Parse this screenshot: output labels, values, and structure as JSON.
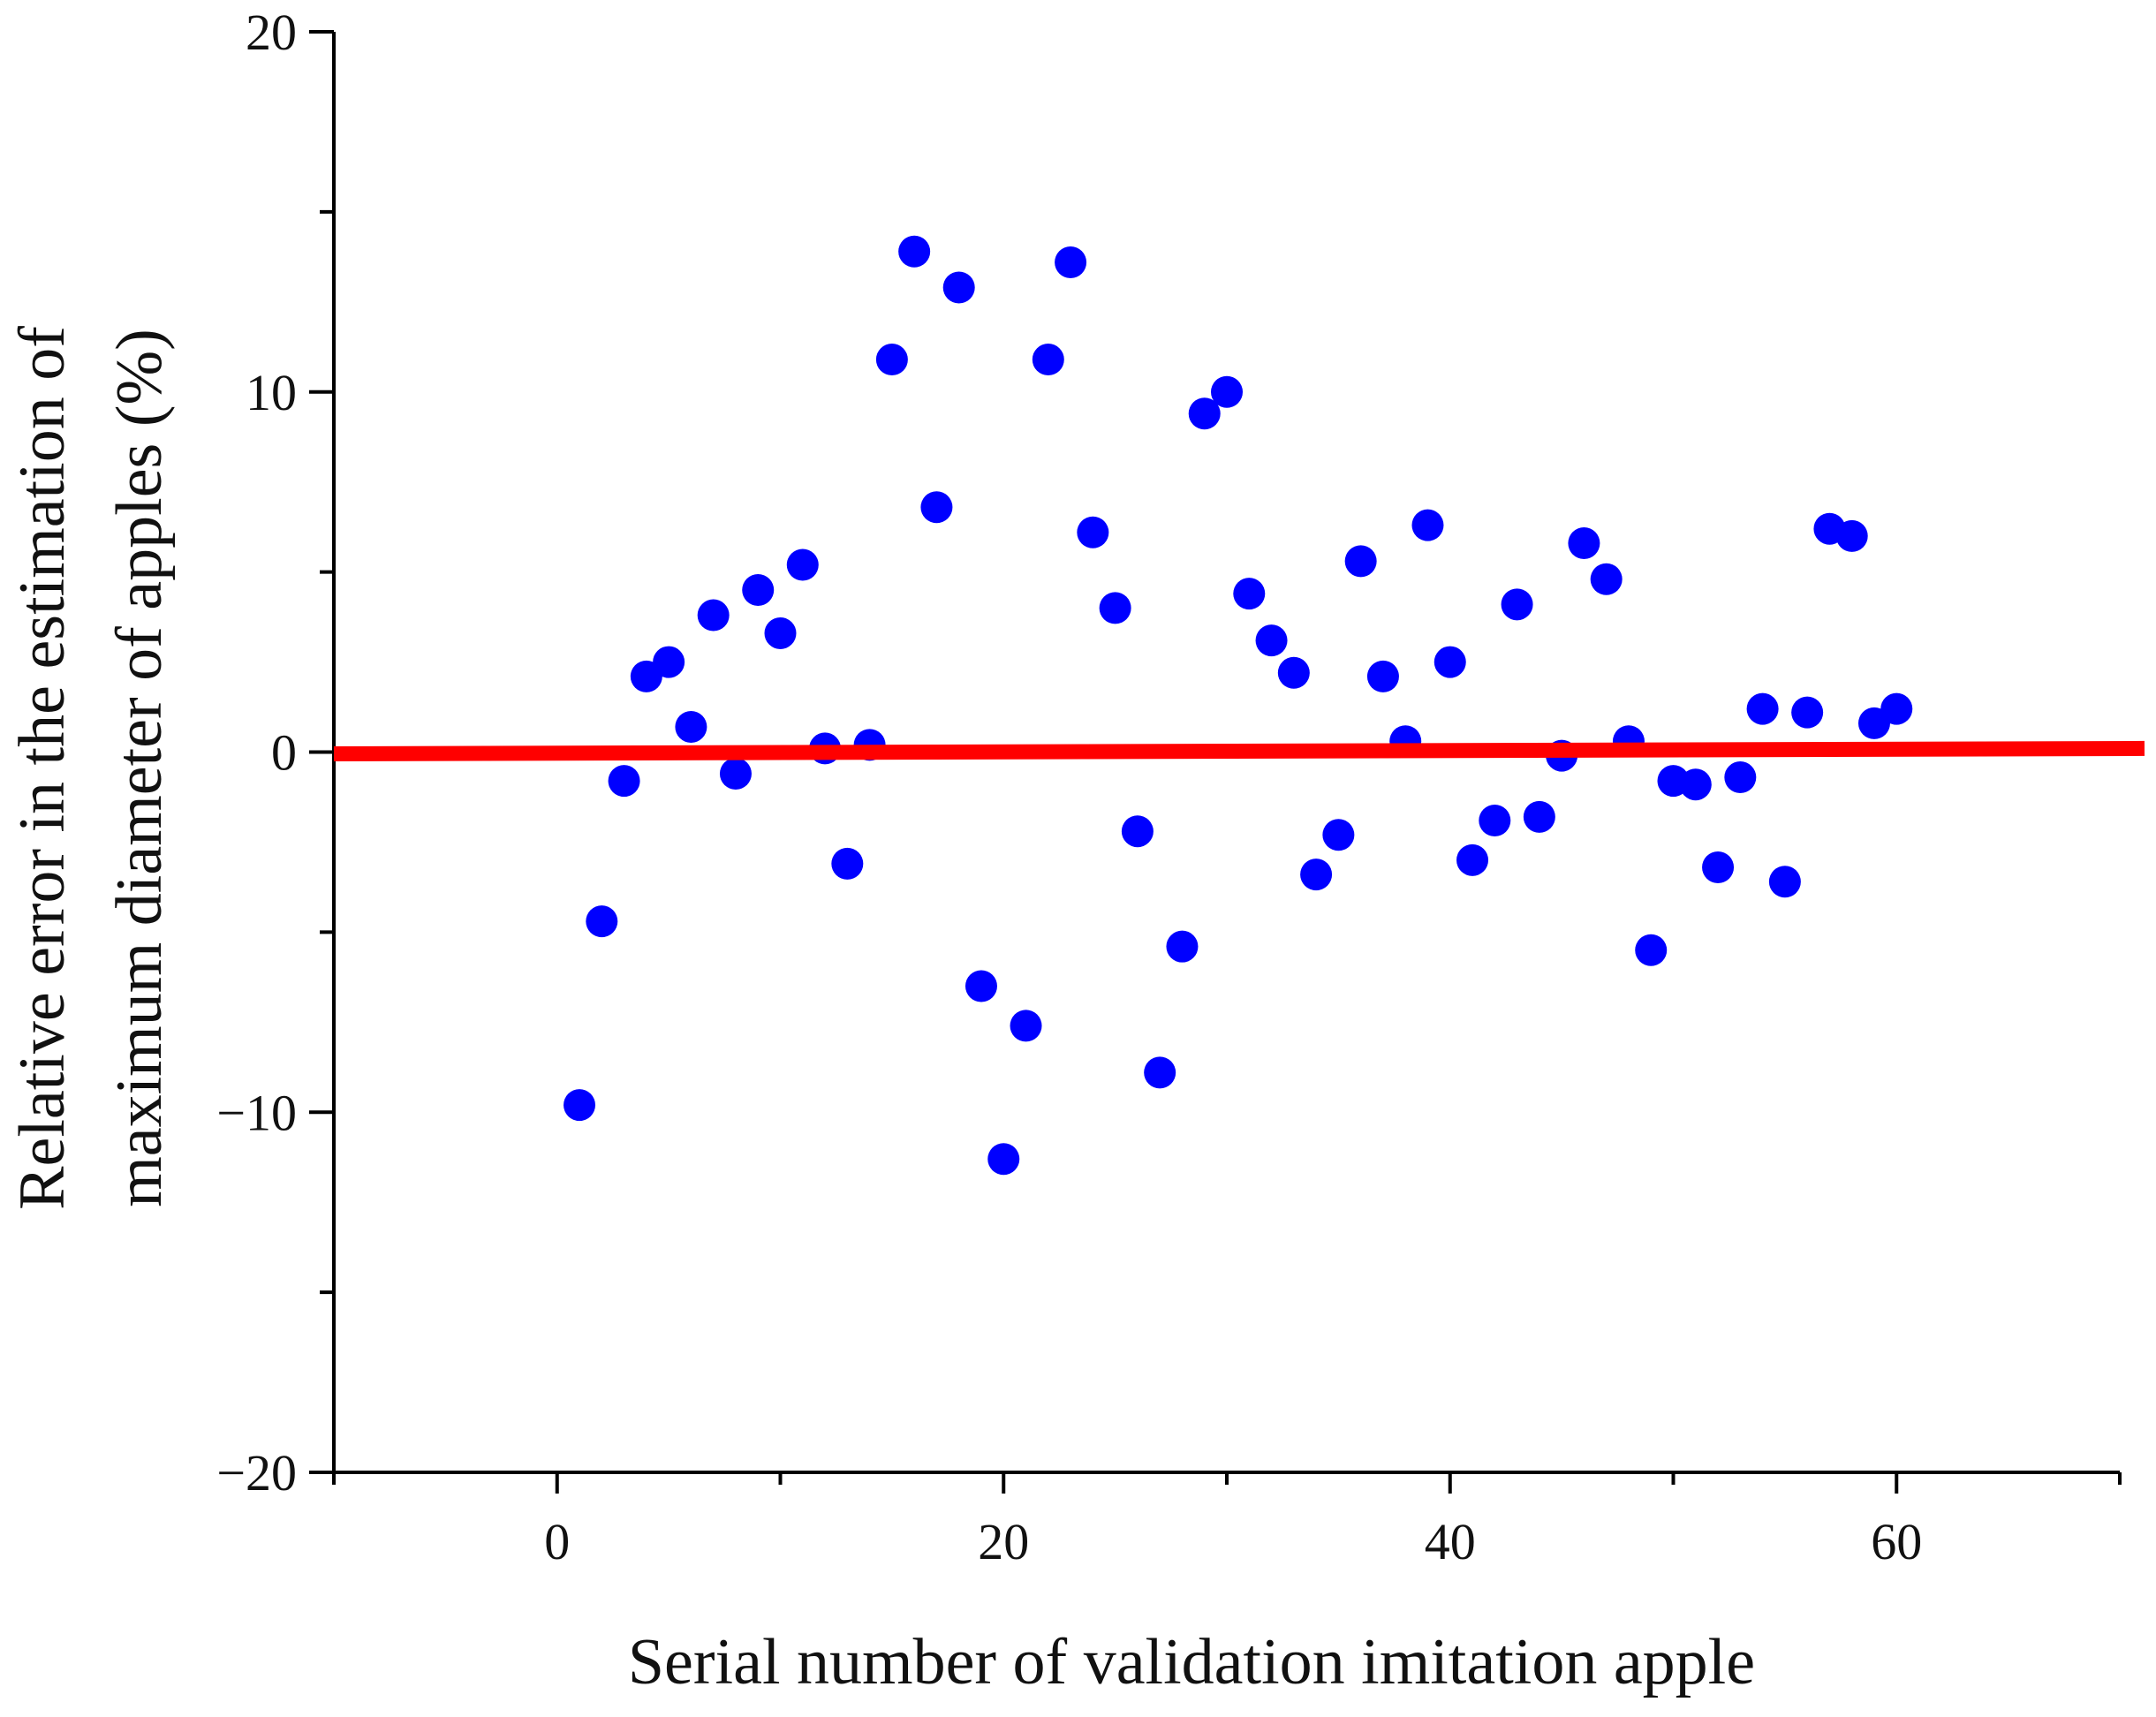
{
  "chart_data": {
    "type": "scatter",
    "title": "",
    "xlabel": "Serial number of validation imitation apple",
    "ylabel_lines": [
      "Relative error in the estimation of",
      "maximum diameter of apples (%)"
    ],
    "xlim": [
      -10,
      70
    ],
    "ylim": [
      -20,
      20
    ],
    "x_ticks": [
      0,
      20,
      40,
      60
    ],
    "y_ticks": [
      -20,
      -10,
      0,
      10,
      20
    ],
    "x_tick_labels": [
      "0",
      "20",
      "40",
      "60"
    ],
    "y_tick_labels": [
      "−20",
      "−10",
      "0",
      "10",
      "20"
    ],
    "x_minor_step": 10,
    "y_minor_step": 5,
    "grid": false,
    "legend": "none",
    "colors": {
      "points": "#0000ff",
      "reference_line": "#ff0000",
      "axes": "#000000"
    },
    "series": [
      {
        "type": "scatter",
        "x": [
          1,
          2,
          3,
          4,
          5,
          6,
          7,
          8,
          9,
          10,
          11,
          12,
          13,
          14,
          15,
          16,
          17,
          18,
          19,
          20,
          21,
          22,
          23,
          24,
          25,
          26,
          27,
          28,
          29,
          30,
          31,
          32,
          33,
          34,
          35,
          36,
          37,
          38,
          39,
          40,
          41,
          42,
          43,
          44,
          45,
          46,
          47,
          48,
          49,
          50,
          51,
          52,
          53,
          54,
          55,
          56,
          57,
          58,
          59,
          60
        ],
        "y": [
          -9.8,
          -4.7,
          -0.8,
          2.1,
          2.5,
          0.7,
          3.8,
          -0.6,
          4.5,
          3.3,
          5.2,
          0.1,
          -3.1,
          0.2,
          10.9,
          13.9,
          6.8,
          12.9,
          -6.5,
          -11.3,
          -7.6,
          10.9,
          13.6,
          6.1,
          4.0,
          -2.2,
          -8.9,
          -5.4,
          9.4,
          10.0,
          4.4,
          3.1,
          2.2,
          -3.4,
          -2.3,
          5.3,
          2.1,
          0.3,
          6.3,
          2.5,
          -3.0,
          -1.9,
          4.1,
          -1.8,
          -0.1,
          5.8,
          4.8,
          0.3,
          -5.5,
          -0.8,
          -0.9,
          -3.2,
          -0.7,
          1.2,
          -3.6,
          1.1,
          6.2,
          6.0,
          0.8,
          1.2
        ]
      },
      {
        "type": "line",
        "x": [
          -10,
          70
        ],
        "y": [
          -0.05,
          0.1
        ]
      }
    ]
  }
}
